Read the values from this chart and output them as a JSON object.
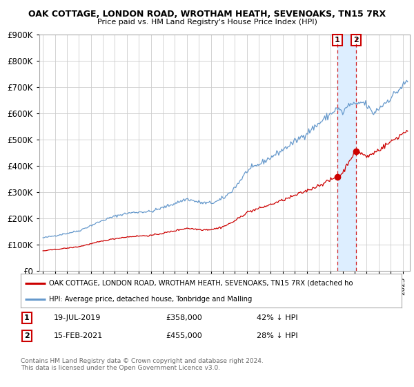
{
  "title": "OAK COTTAGE, LONDON ROAD, WROTHAM HEATH, SEVENOAKS, TN15 7RX",
  "subtitle": "Price paid vs. HM Land Registry's House Price Index (HPI)",
  "legend_line1": "OAK COTTAGE, LONDON ROAD, WROTHAM HEATH, SEVENOAKS, TN15 7RX (detached ho",
  "legend_line2": "HPI: Average price, detached house, Tonbridge and Malling",
  "transaction1_date": "19-JUL-2019",
  "transaction1_price": "£358,000",
  "transaction1_hpi": "42% ↓ HPI",
  "transaction1_value": 358000,
  "transaction2_date": "15-FEB-2021",
  "transaction2_price": "£455,000",
  "transaction2_hpi": "28% ↓ HPI",
  "transaction2_value": 455000,
  "footer": "Contains HM Land Registry data © Crown copyright and database right 2024.\nThis data is licensed under the Open Government Licence v3.0.",
  "hpi_color": "#6699cc",
  "price_color": "#cc0000",
  "background_color": "#ffffff",
  "grid_color": "#cccccc",
  "highlight_color": "#ddeeff",
  "ylim": [
    0,
    900000
  ],
  "start_year": 1995,
  "end_year": 2025
}
